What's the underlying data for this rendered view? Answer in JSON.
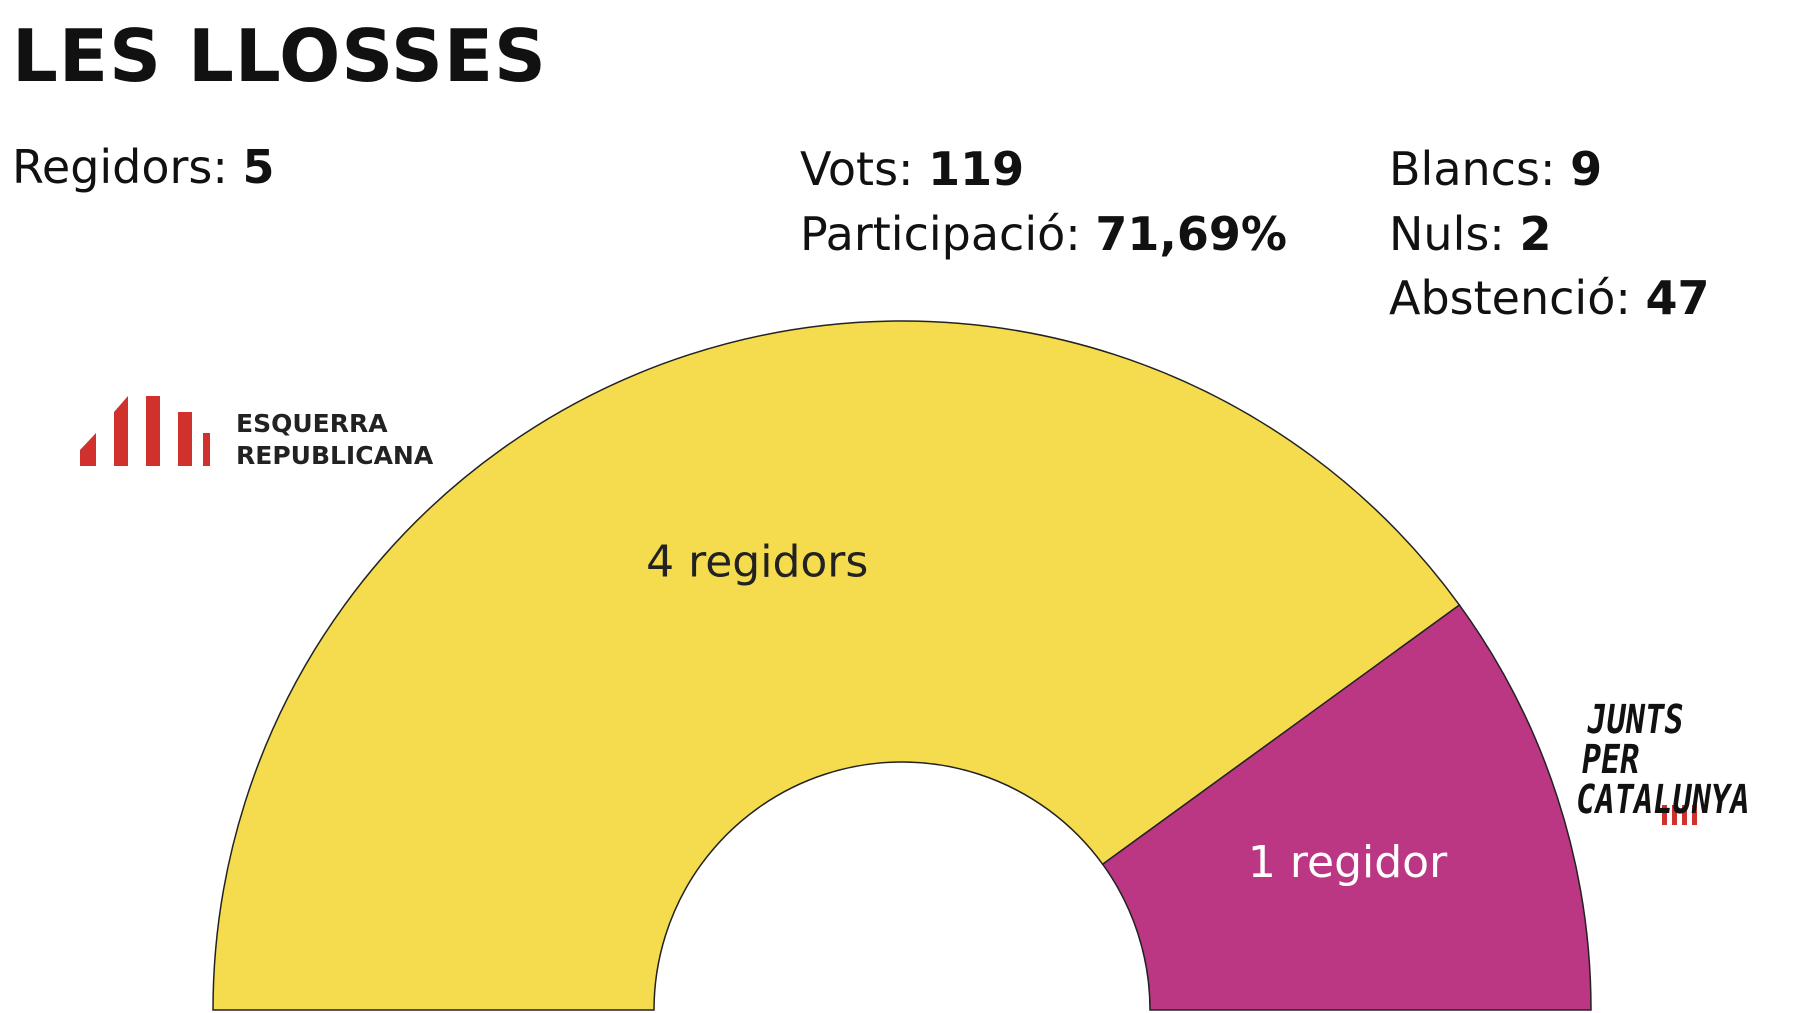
{
  "title": "LES LLOSSES",
  "stats": [
    {
      "label": "Regidors:",
      "value": 5
    },
    {
      "label": "Vots:",
      "value": 119
    },
    {
      "label": "Participació:",
      "value": "71,69%"
    },
    {
      "label": "Blancs:",
      "value": 9
    },
    {
      "label": "Nuls:",
      "value": 2
    },
    {
      "label": "Abstenció:",
      "value": 47
    }
  ],
  "chart_data": {
    "type": "pie",
    "series": [
      {
        "name": "ESQUERRA REPUBLICANA",
        "color": "#f5dc4f",
        "values": [
          4
        ],
        "value_labels": [
          "4 regidors"
        ],
        "label_color": "#222222"
      },
      {
        "name": "JUNTS PER CATALUNYA",
        "color": "#bb3784",
        "values": [
          1
        ],
        "value_labels": [
          "1 regidor"
        ],
        "label_color": "#ffffff"
      }
    ]
  }
}
